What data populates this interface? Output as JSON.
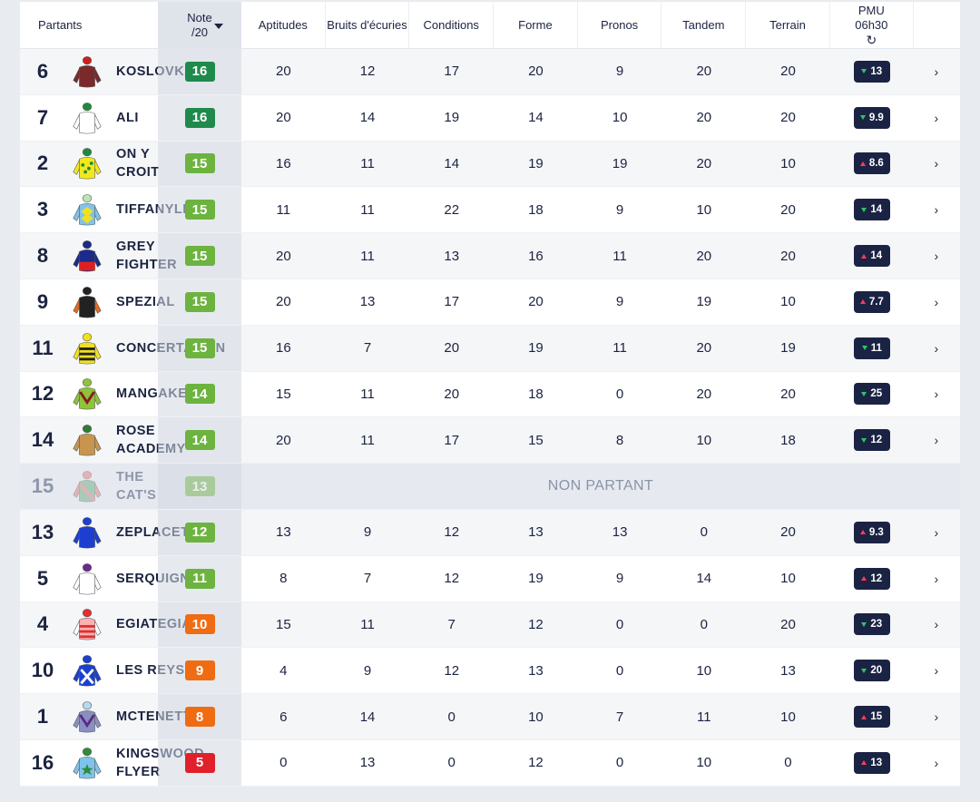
{
  "header": {
    "partants": "Partants",
    "note_line1": "Note",
    "note_line2": "/20",
    "columns": [
      "Aptitudes",
      "Bruits d'écuries",
      "Conditions",
      "Forme",
      "Pronos",
      "Tandem",
      "Terrain"
    ],
    "pmu_line1": "PMU",
    "pmu_line2": "06h30",
    "refresh_icon": "refresh-icon"
  },
  "colors": {
    "note_high": "#1f8a4c",
    "note_good": "#6db33f",
    "note_mid": "#ef6c13",
    "note_low": "#e0202b",
    "odds_bg": "#1b2344",
    "odds_down": "#2ec46b",
    "odds_up": "#ff3b5c"
  },
  "non_partant_label": "NON PARTANT",
  "runners": [
    {
      "num": "6",
      "name": "KOSLOVKA",
      "note": "16",
      "tier": "high",
      "scores": [
        "20",
        "12",
        "17",
        "20",
        "9",
        "20",
        "20"
      ],
      "odds": "13",
      "trend": "down",
      "silk": {
        "body": "#7a2a2a",
        "sleeve": "#7a2a2a",
        "cap": "#cc1f1f",
        "pattern": "plain"
      }
    },
    {
      "num": "7",
      "name": "ALI",
      "note": "16",
      "tier": "high",
      "scores": [
        "20",
        "14",
        "19",
        "14",
        "10",
        "20",
        "20"
      ],
      "odds": "9.9",
      "trend": "down",
      "silk": {
        "body": "#ffffff",
        "sleeve": "#ffffff",
        "cap": "#1f8a3c",
        "pattern": "plain"
      }
    },
    {
      "num": "2",
      "name": "ON Y CROIT",
      "note": "15",
      "tier": "good",
      "scores": [
        "16",
        "11",
        "14",
        "19",
        "19",
        "20",
        "10"
      ],
      "odds": "8.6",
      "trend": "up",
      "silk": {
        "body": "#f2e81c",
        "sleeve": "#f2e81c",
        "cap": "#1f8a3c",
        "pattern": "dots"
      }
    },
    {
      "num": "3",
      "name": "TIFFANYLI",
      "note": "15",
      "tier": "good",
      "scores": [
        "11",
        "11",
        "22",
        "18",
        "9",
        "10",
        "20"
      ],
      "odds": "14",
      "trend": "down",
      "silk": {
        "body": "#7fc3ea",
        "sleeve": "#7fc3ea",
        "cap": "#b8e6b0",
        "pattern": "diamond"
      }
    },
    {
      "num": "8",
      "name": "GREY FIGHTER",
      "note": "15",
      "tier": "good",
      "scores": [
        "20",
        "11",
        "13",
        "16",
        "11",
        "20",
        "20"
      ],
      "odds": "14",
      "trend": "up",
      "silk": {
        "body": "#1c2a8a",
        "sleeve": "#1c2a8a",
        "cap": "#1c2a8a",
        "pattern": "half-red"
      }
    },
    {
      "num": "9",
      "name": "SPEZIAL",
      "note": "15",
      "tier": "good",
      "scores": [
        "20",
        "13",
        "17",
        "20",
        "9",
        "19",
        "10"
      ],
      "odds": "7.7",
      "trend": "up",
      "silk": {
        "body": "#222222",
        "sleeve": "#e06a20",
        "cap": "#222222",
        "pattern": "plain"
      }
    },
    {
      "num": "11",
      "name": "CONCERTATION",
      "note": "15",
      "tier": "good",
      "scores": [
        "16",
        "7",
        "20",
        "19",
        "11",
        "20",
        "19"
      ],
      "odds": "11",
      "trend": "down",
      "silk": {
        "body": "#f0e020",
        "sleeve": "#f0e020",
        "cap": "#f0e020",
        "pattern": "stripes"
      }
    },
    {
      "num": "12",
      "name": "MANGAKE",
      "note": "14",
      "tier": "good",
      "scores": [
        "15",
        "11",
        "20",
        "18",
        "0",
        "20",
        "20"
      ],
      "odds": "25",
      "trend": "down",
      "silk": {
        "body": "#8cc43a",
        "sleeve": "#8cc43a",
        "cap": "#8cc43a",
        "pattern": "chevron"
      }
    },
    {
      "num": "14",
      "name": "ROSE ACADEMY",
      "note": "14",
      "tier": "good",
      "scores": [
        "20",
        "11",
        "17",
        "15",
        "8",
        "10",
        "18"
      ],
      "odds": "12",
      "trend": "down",
      "silk": {
        "body": "#c8954f",
        "sleeve": "#c8954f",
        "cap": "#2e7d32",
        "pattern": "plain"
      }
    },
    {
      "num": "15",
      "name": "THE CAT'S",
      "note": "13",
      "tier": "good",
      "np": true,
      "silk": {
        "body": "#5fa87a",
        "sleeve": "#e07070",
        "cap": "#e07070",
        "pattern": "sash"
      }
    },
    {
      "num": "13",
      "name": "ZEPLACET",
      "note": "12",
      "tier": "good",
      "scores": [
        "13",
        "9",
        "12",
        "13",
        "13",
        "0",
        "20"
      ],
      "odds": "9.3",
      "trend": "up",
      "silk": {
        "body": "#1c3fd0",
        "sleeve": "#1c3fd0",
        "cap": "#1c3fd0",
        "pattern": "plain"
      }
    },
    {
      "num": "5",
      "name": "SERQUIGNY",
      "note": "11",
      "tier": "good",
      "scores": [
        "8",
        "7",
        "12",
        "19",
        "9",
        "14",
        "10"
      ],
      "odds": "12",
      "trend": "up",
      "silk": {
        "body": "#ffffff",
        "sleeve": "#ffffff",
        "cap": "#6a2a8a",
        "pattern": "plain"
      }
    },
    {
      "num": "4",
      "name": "EGIATEGIA",
      "note": "10",
      "tier": "mid",
      "scores": [
        "15",
        "11",
        "7",
        "12",
        "0",
        "0",
        "20"
      ],
      "odds": "23",
      "trend": "down",
      "silk": {
        "body": "#ffb0b0",
        "sleeve": "#ffffff",
        "cap": "#e03030",
        "pattern": "hoops"
      }
    },
    {
      "num": "10",
      "name": "LES REYS",
      "note": "9",
      "tier": "mid",
      "scores": [
        "4",
        "9",
        "12",
        "13",
        "0",
        "10",
        "13"
      ],
      "odds": "20",
      "trend": "down",
      "silk": {
        "body": "#1c3fd0",
        "sleeve": "#1c3fd0",
        "cap": "#1c3fd0",
        "pattern": "cross"
      }
    },
    {
      "num": "1",
      "name": "MCTENETT",
      "note": "8",
      "tier": "mid",
      "scores": [
        "6",
        "14",
        "0",
        "10",
        "7",
        "11",
        "10"
      ],
      "odds": "15",
      "trend": "up",
      "silk": {
        "body": "#8a8fc0",
        "sleeve": "#8a8fc0",
        "cap": "#b8d8f0",
        "pattern": "chevron-purple"
      }
    },
    {
      "num": "16",
      "name": "KINGSWOOD FLYER",
      "note": "5",
      "tier": "low",
      "scores": [
        "0",
        "13",
        "0",
        "12",
        "0",
        "10",
        "0"
      ],
      "odds": "13",
      "trend": "up",
      "silk": {
        "body": "#7fc3ea",
        "sleeve": "#7fc3ea",
        "cap": "#2e8b3c",
        "pattern": "star"
      }
    }
  ]
}
